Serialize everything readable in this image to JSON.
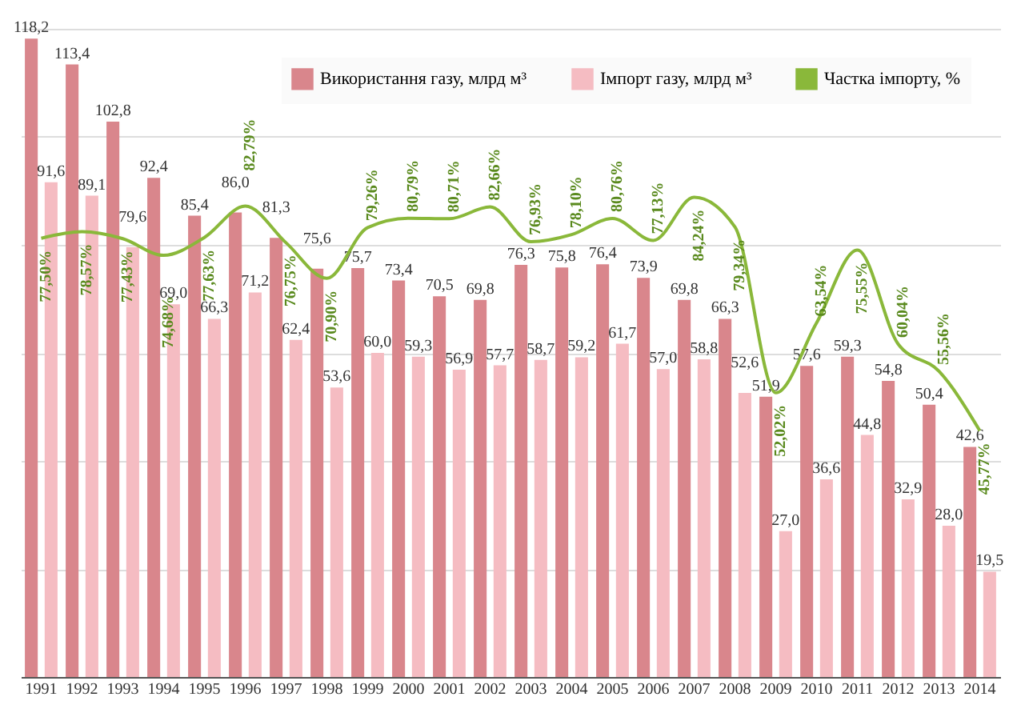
{
  "chart_data": {
    "type": "bar",
    "categories": [
      "1991",
      "1992",
      "1993",
      "1994",
      "1995",
      "1996",
      "1997",
      "1998",
      "1999",
      "2000",
      "2001",
      "2002",
      "2003",
      "2004",
      "2005",
      "2006",
      "2007",
      "2008",
      "2009",
      "2010",
      "2011",
      "2012",
      "2013",
      "2014"
    ],
    "series": [
      {
        "name": "Використання газу, млрд м³",
        "type": "bar",
        "color": "#d9868c",
        "values": [
          118.2,
          113.4,
          102.8,
          92.4,
          85.4,
          86.0,
          81.3,
          75.6,
          75.7,
          73.4,
          70.5,
          69.8,
          76.3,
          75.8,
          76.4,
          73.9,
          69.8,
          66.3,
          51.9,
          57.6,
          59.3,
          54.8,
          50.4,
          42.6
        ],
        "value_labels": [
          "118,2",
          "113,4",
          "102,8",
          "92,4",
          "85,4",
          "86,0",
          "81,3",
          "75,6",
          "75,7",
          "73,4",
          "70,5",
          "69,8",
          "76,3",
          "75,8",
          "76,4",
          "73,9",
          "69,8",
          "66,3",
          "51,9",
          "57,6",
          "59,3",
          "54,8",
          "50,4",
          "42,6"
        ]
      },
      {
        "name": "Імпорт газу, млрд м³",
        "type": "bar",
        "color": "#f5bcc2",
        "values": [
          91.6,
          89.1,
          79.6,
          69.0,
          66.3,
          71.2,
          62.4,
          53.6,
          60.0,
          59.3,
          56.9,
          57.7,
          58.7,
          59.2,
          61.7,
          57.0,
          58.8,
          52.6,
          27.0,
          36.6,
          44.8,
          32.9,
          28.0,
          19.5
        ],
        "value_labels": [
          "91,6",
          "89,1",
          "79,6",
          "69,0",
          "66,3",
          "71,2",
          "62,4",
          "53,6",
          "60,0",
          "59,3",
          "56,9",
          "57,7",
          "58,7",
          "59,2",
          "61,7",
          "57,0",
          "58,8",
          "52,6",
          "27,0",
          "36,6",
          "44,8",
          "32,9",
          "28,0",
          "19,5"
        ]
      },
      {
        "name": "Частка імпорту, %",
        "type": "line",
        "axis": "y2",
        "color": "#8ab83a",
        "values": [
          77.5,
          78.57,
          77.43,
          74.68,
          77.63,
          82.79,
          76.75,
          70.9,
          79.26,
          80.79,
          80.71,
          82.66,
          76.93,
          78.1,
          80.76,
          77.13,
          84.24,
          79.34,
          52.02,
          63.54,
          75.55,
          60.04,
          55.56,
          45.77
        ],
        "value_labels": [
          "77,50%",
          "78,57%",
          "77,43%",
          "74,68%",
          "77,63%",
          "82,79%",
          "76,75%",
          "70,90%",
          "79,26%",
          "80,79%",
          "80,71%",
          "82,66%",
          "76,93%",
          "78,10%",
          "80,76%",
          "77,13%",
          "84,24%",
          "79,34%",
          "52,02%",
          "63,54%",
          "75,55%",
          "60,04%",
          "55,56%",
          "45,77%"
        ]
      }
    ],
    "ylim": [
      0,
      120
    ],
    "yticks": [
      0,
      20,
      40,
      60,
      80,
      100,
      120
    ],
    "grid": "y",
    "tick_labels": "x",
    "legend": "top right",
    "marker": "none"
  }
}
